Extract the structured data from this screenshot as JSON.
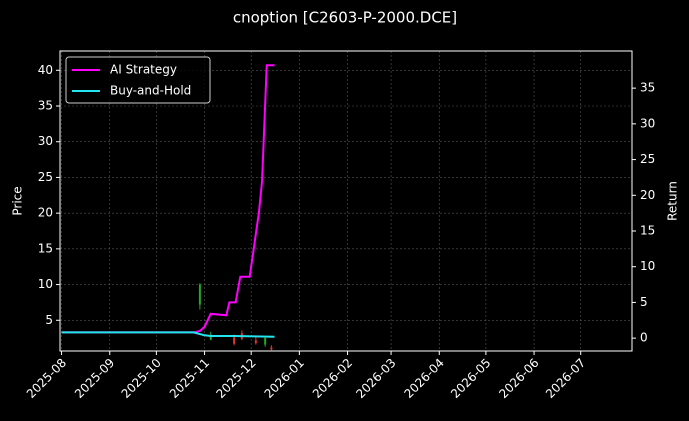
{
  "chart_data": {
    "type": "line",
    "title": "cnoption [C2603-P-2000.DCE]",
    "y_label": "Price",
    "y2_label": "Return",
    "xlim": [
      "2025-07-31",
      "2026-08-03"
    ],
    "xticks": [
      "2025-08",
      "2025-09",
      "2025-10",
      "2025-11",
      "2025-12",
      "2026-01",
      "2026-02",
      "2026-03",
      "2026-04",
      "2026-05",
      "2026-06",
      "2026-07"
    ],
    "ylim": [
      0.7,
      42.7
    ],
    "yticks": [
      5,
      10,
      15,
      20,
      25,
      30,
      35,
      40
    ],
    "y2lim": [
      -1.8,
      40.2
    ],
    "y2ticks": [
      0,
      5,
      10,
      15,
      20,
      25,
      30,
      35
    ],
    "grid": true,
    "legend": "upper left",
    "candles": {
      "up_color": "#22aa22",
      "down_color": "#dd3333",
      "x": [
        "2025-10-29",
        "2025-11-05",
        "2025-11-20",
        "2025-11-25",
        "2025-12-04",
        "2025-12-10",
        "2025-12-14"
      ],
      "open": [
        7.2,
        2.3,
        2.6,
        3.2,
        2.2,
        1.6,
        1.2
      ],
      "high": [
        10.2,
        3.4,
        3.0,
        3.6,
        2.6,
        2.8,
        1.5
      ],
      "low": [
        6.5,
        2.2,
        1.5,
        2.2,
        1.6,
        1.3,
        0.8
      ],
      "close": [
        10.0,
        3.0,
        1.7,
        2.4,
        1.8,
        2.5,
        0.9
      ]
    },
    "series": [
      {
        "name": "AI Strategy",
        "color": "#ff00ff",
        "axis": "y2",
        "x": [
          "2025-08-01",
          "2025-10-25",
          "2025-10-29",
          "2025-11-01",
          "2025-11-05",
          "2025-11-15",
          "2025-11-17",
          "2025-11-21",
          "2025-11-24",
          "2025-11-30",
          "2025-12-02",
          "2025-12-04",
          "2025-12-06",
          "2025-12-08",
          "2025-12-11",
          "2025-12-16"
        ],
        "values": [
          0.8,
          0.8,
          1.0,
          1.6,
          3.4,
          3.2,
          5.0,
          5.0,
          8.6,
          8.6,
          11.5,
          14.6,
          17.6,
          22.0,
          38.2,
          38.2
        ]
      },
      {
        "name": "Buy-and-Hold",
        "color": "#22e5f0",
        "axis": "y2",
        "x": [
          "2025-08-01",
          "2025-10-25",
          "2025-11-01",
          "2025-11-05",
          "2025-11-20",
          "2025-12-16"
        ],
        "values": [
          0.8,
          0.8,
          0.4,
          0.3,
          0.3,
          0.2
        ]
      }
    ]
  }
}
